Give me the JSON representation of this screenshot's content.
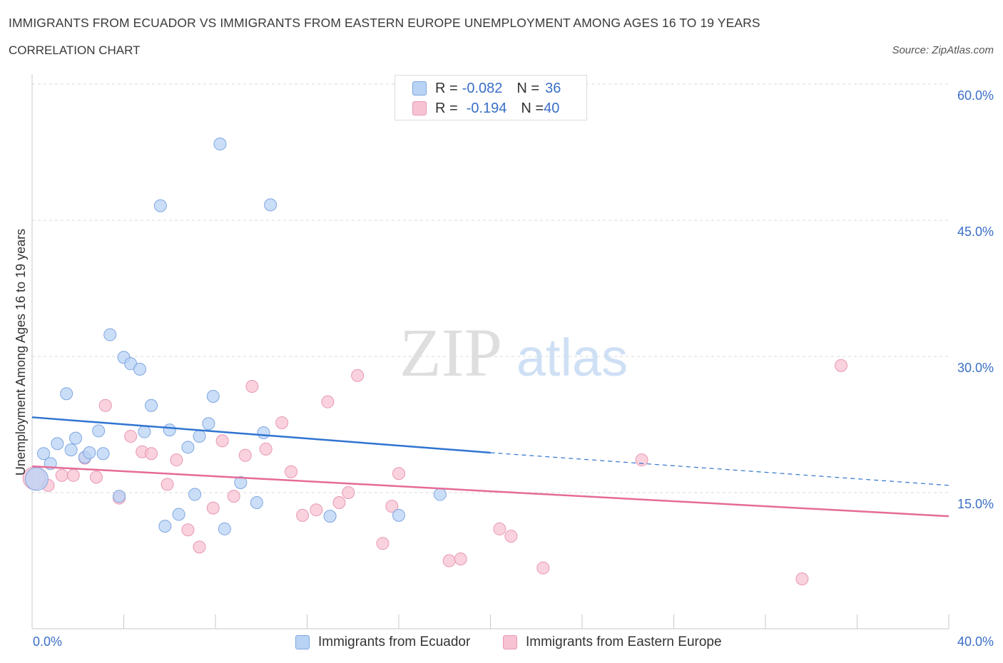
{
  "header": {
    "title": "IMMIGRANTS FROM ECUADOR VS IMMIGRANTS FROM EASTERN EUROPE UNEMPLOYMENT AMONG AGES 16 TO 19 YEARS",
    "subtitle": "CORRELATION CHART",
    "source": "Source: ZipAtlas.com"
  },
  "legend": {
    "rows": [
      {
        "r_label": "R = ",
        "r_value": "-0.082",
        "n_label": "N = ",
        "n_value": "36"
      },
      {
        "r_label": "R = ",
        "r_value": "-0.194",
        "n_label": "N = ",
        "n_value": "40"
      }
    ]
  },
  "watermark": {
    "zip": "ZIP",
    "atlas": "atlas"
  },
  "colors": {
    "ecuador_fill": "#b9d3f5",
    "ecuador_stroke": "#7ea6e0",
    "ecuador_line": "#2f74d0",
    "eeurope_fill": "#f7c3d3",
    "eeurope_stroke": "#e898b2",
    "eeurope_line": "#e56b98",
    "axis_text": "#3a6fc7",
    "grid": "#d9d9d9"
  },
  "chart_data": {
    "type": "scatter",
    "title": "IMMIGRANTS FROM ECUADOR VS IMMIGRANTS FROM EASTERN EUROPE UNEMPLOYMENT AMONG AGES 16 TO 19 YEARS",
    "subtitle": "CORRELATION CHART",
    "xlabel": "",
    "ylabel": "Unemployment Among Ages 16 to 19 years",
    "xlim": [
      0,
      40
    ],
    "ylim": [
      0,
      60
    ],
    "x_tick_labels": [
      "0.0%",
      "40.0%"
    ],
    "y_ticks": [
      15,
      30,
      45,
      60
    ],
    "y_tick_labels": [
      "15.0%",
      "30.0%",
      "45.0%",
      "60.0%"
    ],
    "grid": true,
    "legend_position": "top-center",
    "series": [
      {
        "name": "Immigrants from Ecuador",
        "R": -0.082,
        "N": 36,
        "trend": {
          "x": [
            0,
            20
          ],
          "y": [
            23.3,
            19.4
          ]
        },
        "trend_dashed_extension": {
          "x": [
            20,
            40
          ],
          "y": [
            19.4,
            15.8
          ]
        },
        "points": [
          {
            "x": 0.2,
            "y": 16.5,
            "size": "large"
          },
          {
            "x": 0.5,
            "y": 19.3
          },
          {
            "x": 0.8,
            "y": 18.2
          },
          {
            "x": 1.1,
            "y": 20.4
          },
          {
            "x": 1.5,
            "y": 25.9
          },
          {
            "x": 1.7,
            "y": 19.7
          },
          {
            "x": 1.9,
            "y": 21.0
          },
          {
            "x": 2.3,
            "y": 18.9
          },
          {
            "x": 2.5,
            "y": 19.4
          },
          {
            "x": 2.9,
            "y": 21.8
          },
          {
            "x": 3.1,
            "y": 19.3
          },
          {
            "x": 3.4,
            "y": 32.4
          },
          {
            "x": 3.8,
            "y": 14.6
          },
          {
            "x": 4.0,
            "y": 29.9
          },
          {
            "x": 4.3,
            "y": 29.2
          },
          {
            "x": 4.7,
            "y": 28.6
          },
          {
            "x": 4.9,
            "y": 21.7
          },
          {
            "x": 5.2,
            "y": 24.6
          },
          {
            "x": 5.6,
            "y": 46.6
          },
          {
            "x": 5.8,
            "y": 11.3
          },
          {
            "x": 6.0,
            "y": 21.9
          },
          {
            "x": 6.4,
            "y": 12.6
          },
          {
            "x": 6.8,
            "y": 20.0
          },
          {
            "x": 7.1,
            "y": 14.8
          },
          {
            "x": 7.3,
            "y": 21.2
          },
          {
            "x": 7.7,
            "y": 22.6
          },
          {
            "x": 7.9,
            "y": 25.6
          },
          {
            "x": 8.2,
            "y": 53.4
          },
          {
            "x": 8.4,
            "y": 11.0
          },
          {
            "x": 9.1,
            "y": 16.1
          },
          {
            "x": 9.8,
            "y": 13.9
          },
          {
            "x": 10.1,
            "y": 21.6
          },
          {
            "x": 10.4,
            "y": 46.7
          },
          {
            "x": 13.0,
            "y": 12.4
          },
          {
            "x": 16.0,
            "y": 12.5
          },
          {
            "x": 17.8,
            "y": 14.8
          }
        ]
      },
      {
        "name": "Immigrants from Eastern Europe",
        "R": -0.194,
        "N": 40,
        "trend": {
          "x": [
            0,
            40
          ],
          "y": [
            17.9,
            12.4
          ]
        },
        "points": [
          {
            "x": 0.1,
            "y": 16.6,
            "size": "large"
          },
          {
            "x": 0.7,
            "y": 15.8
          },
          {
            "x": 1.3,
            "y": 16.9
          },
          {
            "x": 1.8,
            "y": 16.9
          },
          {
            "x": 2.3,
            "y": 18.8
          },
          {
            "x": 2.8,
            "y": 16.7
          },
          {
            "x": 3.2,
            "y": 24.6
          },
          {
            "x": 3.8,
            "y": 14.4
          },
          {
            "x": 4.3,
            "y": 21.2
          },
          {
            "x": 4.8,
            "y": 19.5
          },
          {
            "x": 5.2,
            "y": 19.3
          },
          {
            "x": 5.9,
            "y": 15.9
          },
          {
            "x": 6.3,
            "y": 18.6
          },
          {
            "x": 6.8,
            "y": 10.9
          },
          {
            "x": 7.3,
            "y": 9.0
          },
          {
            "x": 7.9,
            "y": 13.3
          },
          {
            "x": 8.3,
            "y": 20.7
          },
          {
            "x": 8.8,
            "y": 14.6
          },
          {
            "x": 9.3,
            "y": 19.1
          },
          {
            "x": 9.6,
            "y": 26.7
          },
          {
            "x": 10.2,
            "y": 19.8
          },
          {
            "x": 10.9,
            "y": 22.7
          },
          {
            "x": 11.3,
            "y": 17.3
          },
          {
            "x": 11.8,
            "y": 12.5
          },
          {
            "x": 12.4,
            "y": 13.1
          },
          {
            "x": 12.9,
            "y": 25.0
          },
          {
            "x": 13.4,
            "y": 13.9
          },
          {
            "x": 13.8,
            "y": 15.0
          },
          {
            "x": 14.2,
            "y": 27.9
          },
          {
            "x": 15.3,
            "y": 9.4
          },
          {
            "x": 15.7,
            "y": 13.5
          },
          {
            "x": 16.0,
            "y": 17.1
          },
          {
            "x": 18.2,
            "y": 7.5
          },
          {
            "x": 18.7,
            "y": 7.7
          },
          {
            "x": 20.4,
            "y": 11.0
          },
          {
            "x": 20.9,
            "y": 10.2
          },
          {
            "x": 22.3,
            "y": 6.7
          },
          {
            "x": 26.6,
            "y": 18.6
          },
          {
            "x": 33.6,
            "y": 5.5
          },
          {
            "x": 35.3,
            "y": 29.0
          }
        ]
      }
    ]
  },
  "bottom_legend": {
    "items": [
      "Immigrants from Ecuador",
      "Immigrants from Eastern Europe"
    ]
  }
}
